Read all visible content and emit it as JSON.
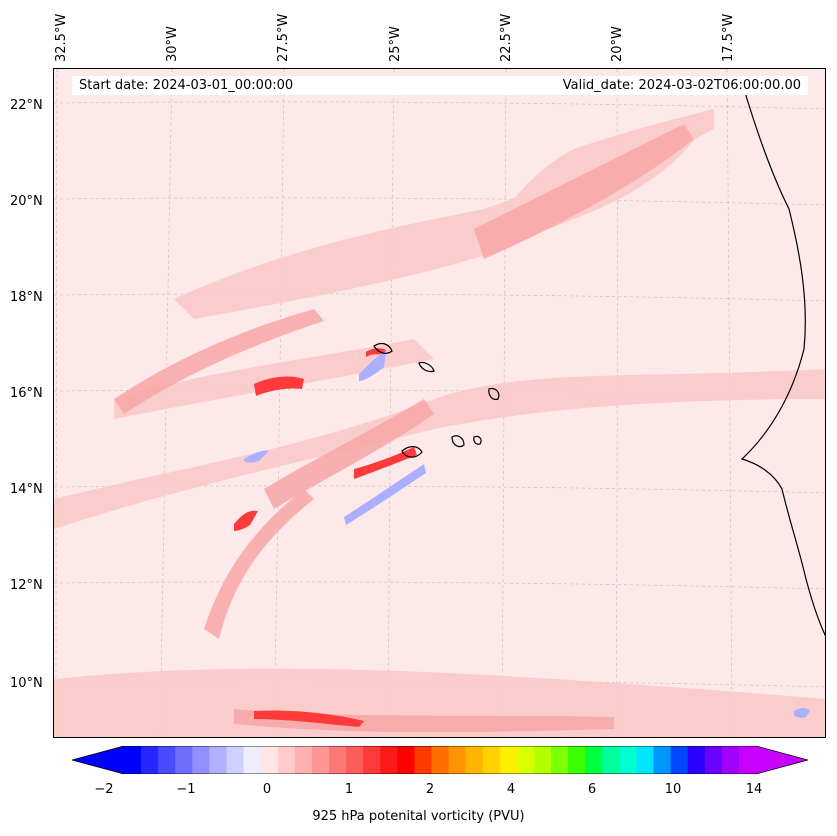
{
  "header": {
    "start_date": "Start date: 2024-03-01_00:00:00",
    "valid_date": "Valid_date: 2024-03-02T06:00:00.00"
  },
  "axes": {
    "lon_labels": [
      "32.5°W",
      "30°W",
      "27.5°W",
      "25°W",
      "22.5°W",
      "20°W",
      "17.5°W"
    ],
    "lat_labels": [
      "22°N",
      "20°N",
      "18°N",
      "16°N",
      "14°N",
      "12°N",
      "10°N"
    ]
  },
  "colorbar": {
    "title": "925 hPa potenital vorticity (PVU)",
    "ticks": [
      "−2",
      "−1",
      "0",
      "1",
      "2",
      "4",
      "6",
      "10",
      "14"
    ],
    "colors": [
      "#0000ff",
      "#2727ff",
      "#4a4aff",
      "#6e6eff",
      "#9090ff",
      "#b0b0ff",
      "#d0d0ff",
      "#eeeeff",
      "#ffe6e6",
      "#ffcccc",
      "#ffb0b0",
      "#ff9494",
      "#ff7878",
      "#ff5c5c",
      "#ff3a3a",
      "#ff1a1a",
      "#ff0000",
      "#ff3a00",
      "#ff6e00",
      "#ff9400",
      "#ffb400",
      "#ffd200",
      "#fff000",
      "#dcff00",
      "#b2ff00",
      "#7cff00",
      "#3cff00",
      "#00ff3c",
      "#00ff9c",
      "#00ffd2",
      "#00e6ff",
      "#0096ff",
      "#0046ff",
      "#2a00ff",
      "#6a00ff",
      "#a000ff",
      "#c800ff"
    ],
    "under_color": "#0000ff",
    "over_color": "#c800ff"
  }
}
